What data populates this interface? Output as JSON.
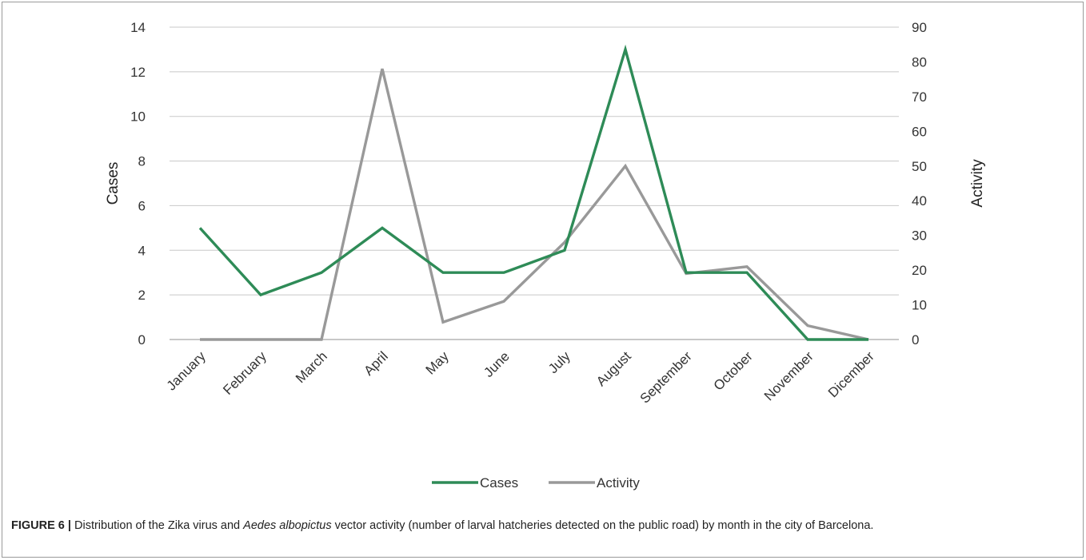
{
  "caption": {
    "label": "FIGURE 6 |",
    "text_before": " Distribution of the Zika virus and ",
    "species": "Aedes albopictus",
    "text_after": " vector activity (number of larval hatcheries detected on the public road) by month in the city of Barcelona."
  },
  "chart_data": {
    "type": "line",
    "title": "",
    "categories": [
      "January",
      "February",
      "March",
      "April",
      "May",
      "June",
      "July",
      "August",
      "September",
      "October",
      "November",
      "Dicember"
    ],
    "series": [
      {
        "name": "Cases",
        "axis": "left",
        "color": "#2e8b57",
        "values": [
          5,
          2,
          3,
          5,
          3,
          3,
          4,
          13,
          3,
          3,
          0,
          0
        ]
      },
      {
        "name": "Activity",
        "axis": "right",
        "color": "#999999",
        "values": [
          0,
          0,
          0,
          78,
          5,
          11,
          28,
          50,
          19,
          21,
          4,
          0
        ]
      }
    ],
    "ylabel": "Cases",
    "y2label": "Activity",
    "ylim": [
      0,
      14
    ],
    "yticks": [
      0,
      2,
      4,
      6,
      8,
      10,
      12,
      14
    ],
    "y2lim": [
      0,
      90
    ],
    "y2ticks": [
      0,
      10,
      20,
      30,
      40,
      50,
      60,
      70,
      80,
      90
    ],
    "grid": true,
    "legend": "bottom-center"
  }
}
